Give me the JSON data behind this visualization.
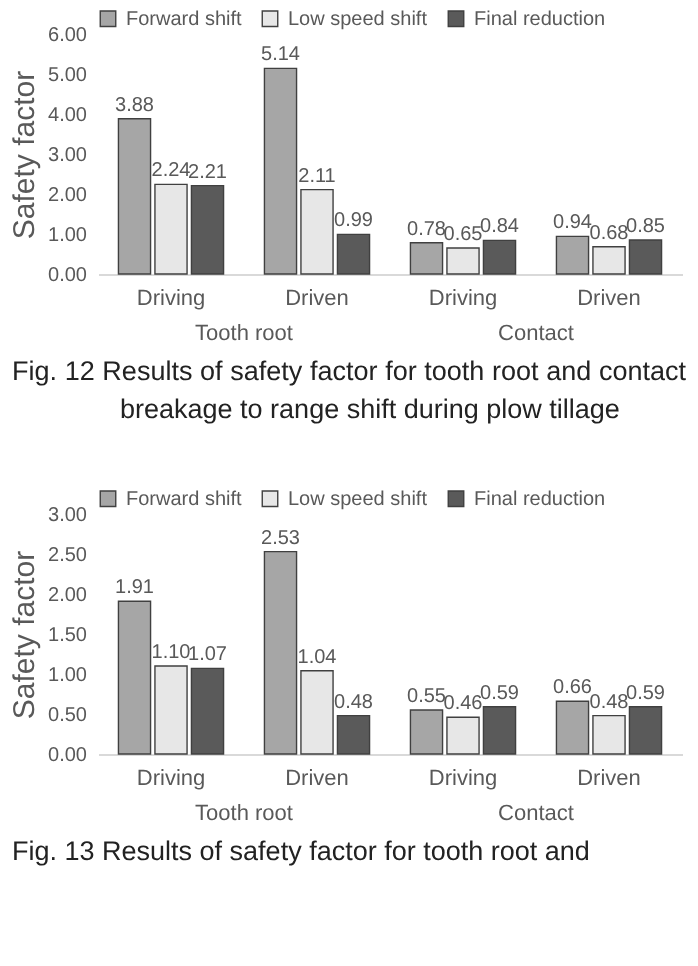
{
  "chart_data": [
    {
      "type": "bar",
      "ylabel": "Safety factor",
      "categories": [
        "Driving",
        "Driven",
        "Driving",
        "Driven"
      ],
      "series": [
        {
          "name": "Forward shift",
          "color": "#a6a6a6",
          "values": [
            3.88,
            5.14,
            0.78,
            0.94
          ]
        },
        {
          "name": "Low speed shift",
          "color": "#e7e7e7",
          "values": [
            2.24,
            2.11,
            0.65,
            0.68
          ]
        },
        {
          "name": "Final reduction",
          "color": "#5a5a5a",
          "values": [
            2.21,
            0.99,
            0.84,
            0.85
          ]
        }
      ],
      "ylim": [
        0,
        6
      ],
      "yticks": [
        {
          "value": 0,
          "label": "0.00"
        },
        {
          "value": 1,
          "label": "1.00"
        },
        {
          "value": 2,
          "label": "2.00"
        },
        {
          "value": 3,
          "label": "3.00"
        },
        {
          "value": 4,
          "label": "4.00"
        },
        {
          "value": 5,
          "label": "5.00"
        },
        {
          "value": 6,
          "label": "6.00"
        }
      ],
      "data_labels": true,
      "legend": "top",
      "grid": false,
      "annotations": [
        "Tooth root",
        "Contact",
        "Fig. 12 Results of safety factor for tooth root and contact breakage to range shift during plow tillage"
      ]
    },
    {
      "type": "bar",
      "ylabel": "Safety factor",
      "categories": [
        "Driving",
        "Driven",
        "Driving",
        "Driven"
      ],
      "series": [
        {
          "name": "Forward shift",
          "color": "#a6a6a6",
          "values": [
            1.91,
            2.53,
            0.55,
            0.66
          ]
        },
        {
          "name": "Low speed shift",
          "color": "#e7e7e7",
          "values": [
            1.1,
            1.04,
            0.46,
            0.48
          ],
          "value_labels": [
            "1.10",
            "1.04",
            "0.46",
            "0.48"
          ]
        },
        {
          "name": "Final reduction",
          "color": "#5a5a5a",
          "values": [
            1.07,
            0.48,
            0.59,
            0.59
          ]
        }
      ],
      "ylim": [
        0,
        3
      ],
      "yticks": [
        {
          "value": 0,
          "label": "0.00"
        },
        {
          "value": 0.5,
          "label": "0.50"
        },
        {
          "value": 1,
          "label": "1.00"
        },
        {
          "value": 1.5,
          "label": "1.50"
        },
        {
          "value": 2,
          "label": "2.00"
        },
        {
          "value": 2.5,
          "label": "2.50"
        },
        {
          "value": 3,
          "label": "3.00"
        }
      ],
      "data_labels": true,
      "legend": "top",
      "grid": false,
      "annotations": [
        "Tooth root",
        "Contact",
        "Fig. 13 Results of safety factor for tooth root and"
      ]
    }
  ]
}
